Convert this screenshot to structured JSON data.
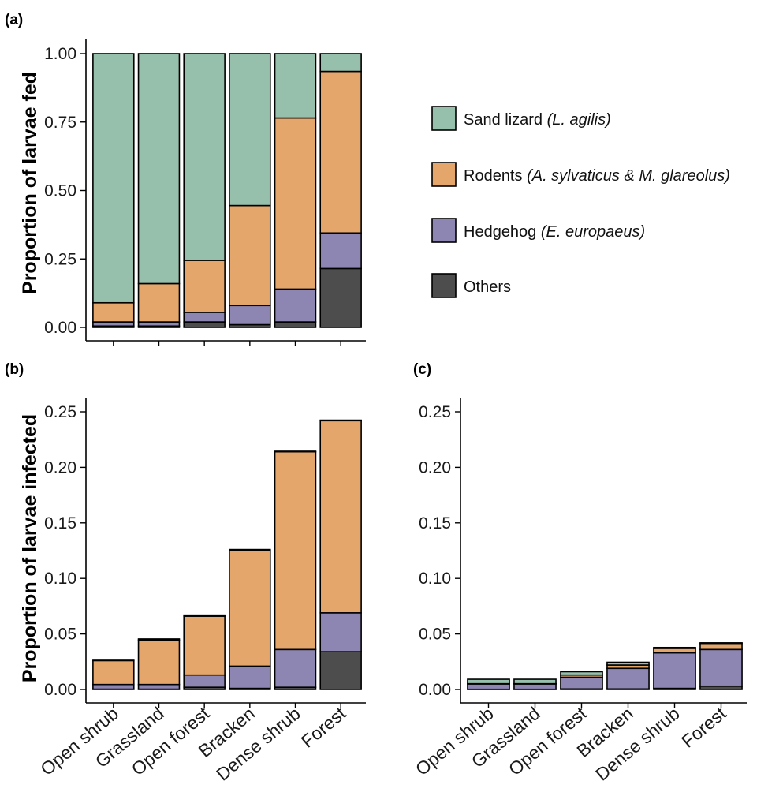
{
  "colors": {
    "sand_lizard": "#96BFAC",
    "rodents": "#E5A66B",
    "hedgehog": "#8E86B2",
    "others": "#4D4D4D"
  },
  "panels": {
    "a": "(a)",
    "b": "(b)",
    "c": "(c)"
  },
  "axes": {
    "ylabel_a": "Proportion of larvae fed",
    "ylabel_bc": "Proportion of larvae infected"
  },
  "legend": [
    {
      "key": "sand_lizard",
      "label": "Sand lizard ",
      "italic": "(L. agilis)"
    },
    {
      "key": "rodents",
      "label": "Rodents ",
      "italic": "(A. sylvaticus & M. glareolus)"
    },
    {
      "key": "hedgehog",
      "label": "Hedgehog ",
      "italic": "(E. europaeus)"
    },
    {
      "key": "others",
      "label": "Others",
      "italic": ""
    }
  ],
  "chart_data": [
    {
      "panel": "(a)",
      "type": "bar",
      "stacked": true,
      "categories": [
        "Open shrub",
        "Grassland",
        "Open forest",
        "Bracken",
        "Dense shrub",
        "Forest"
      ],
      "show_category_labels": false,
      "ylabel": "Proportion of larvae fed",
      "ylim": [
        0,
        1.05
      ],
      "yticks": [
        "0.00",
        "0.25",
        "0.50",
        "0.75",
        "1.00"
      ],
      "series": [
        {
          "name": "Others",
          "key": "others",
          "values": [
            0.005,
            0.005,
            0.02,
            0.01,
            0.02,
            0.215
          ]
        },
        {
          "name": "Hedgehog (E. europaeus)",
          "key": "hedgehog",
          "values": [
            0.015,
            0.015,
            0.035,
            0.07,
            0.12,
            0.13
          ]
        },
        {
          "name": "Rodents (A. sylvaticus & M. glareolus)",
          "key": "rodents",
          "values": [
            0.07,
            0.14,
            0.19,
            0.365,
            0.625,
            0.59
          ]
        },
        {
          "name": "Sand lizard (L. agilis)",
          "key": "sand_lizard",
          "values": [
            0.91,
            0.84,
            0.755,
            0.555,
            0.235,
            0.065
          ]
        }
      ],
      "grid": false
    },
    {
      "panel": "(b)",
      "type": "bar",
      "stacked": true,
      "categories": [
        "Open shrub",
        "Grassland",
        "Open forest",
        "Bracken",
        "Dense shrub",
        "Forest"
      ],
      "show_category_labels": true,
      "ylabel": "Proportion of larvae infected",
      "ylim": [
        0,
        0.26
      ],
      "yticks": [
        "0.00",
        "0.05",
        "0.10",
        "0.15",
        "0.20",
        "0.25"
      ],
      "series": [
        {
          "name": "Others",
          "key": "others",
          "values": [
            0.0003,
            0.0003,
            0.002,
            0.001,
            0.002,
            0.034
          ]
        },
        {
          "name": "Hedgehog (E. europaeus)",
          "key": "hedgehog",
          "values": [
            0.0042,
            0.0042,
            0.011,
            0.02,
            0.034,
            0.035
          ]
        },
        {
          "name": "Rodents (A. sylvaticus & M. glareolus)",
          "key": "rodents",
          "values": [
            0.0215,
            0.04,
            0.053,
            0.104,
            0.178,
            0.173
          ]
        },
        {
          "name": "Sand lizard (L. agilis)",
          "key": "sand_lizard",
          "values": [
            0.001,
            0.001,
            0.001,
            0.001,
            0.0005,
            0.0005
          ]
        }
      ],
      "grid": false
    },
    {
      "panel": "(c)",
      "type": "bar",
      "stacked": true,
      "categories": [
        "Open shrub",
        "Grassland",
        "Open forest",
        "Bracken",
        "Dense shrub",
        "Forest"
      ],
      "show_category_labels": true,
      "ylabel": "",
      "ylim": [
        0,
        0.26
      ],
      "yticks": [
        "0.00",
        "0.05",
        "0.10",
        "0.15",
        "0.20",
        "0.25"
      ],
      "series": [
        {
          "name": "Others",
          "key": "others",
          "values": [
            0.0002,
            0.0002,
            0.0005,
            0.0005,
            0.001,
            0.003
          ]
        },
        {
          "name": "Hedgehog (E. europaeus)",
          "key": "hedgehog",
          "values": [
            0.0048,
            0.0048,
            0.0105,
            0.0185,
            0.032,
            0.033
          ]
        },
        {
          "name": "Rodents (A. sylvaticus & M. glareolus)",
          "key": "rodents",
          "values": [
            0.0002,
            0.0002,
            0.002,
            0.003,
            0.004,
            0.0055
          ]
        },
        {
          "name": "Sand lizard (L. agilis)",
          "key": "sand_lizard",
          "values": [
            0.004,
            0.004,
            0.003,
            0.0025,
            0.0008,
            0.0005
          ]
        }
      ],
      "grid": false
    }
  ]
}
